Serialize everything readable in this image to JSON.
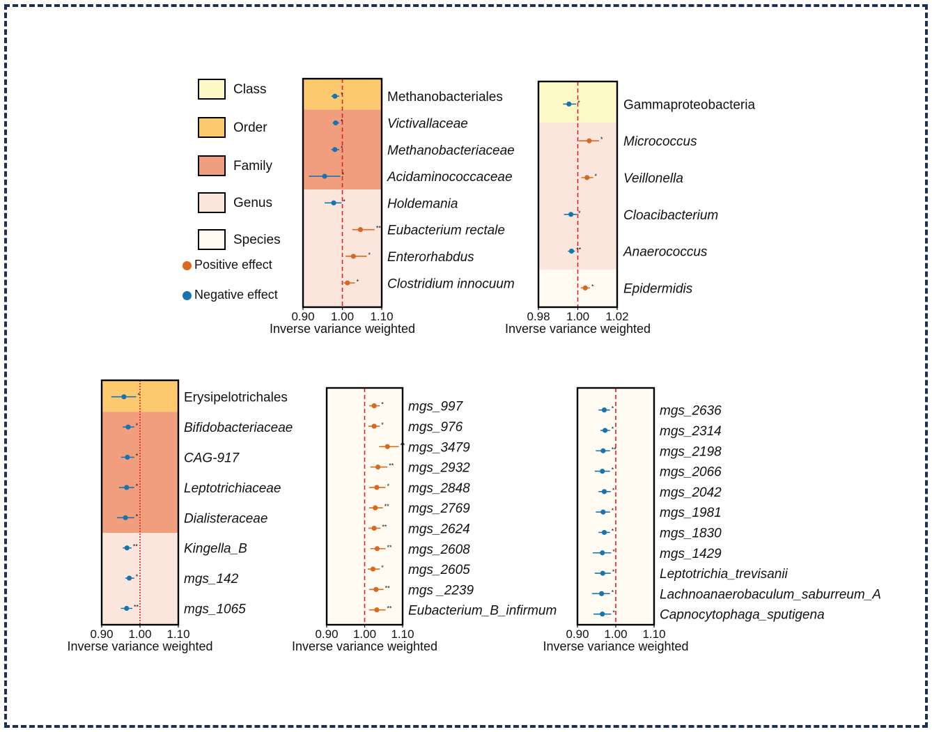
{
  "colors": {
    "frame": "#1c2f55",
    "class": "#fefac8",
    "order": "#fdc96e",
    "family": "#f09e7e",
    "genus": "#fbe6de",
    "species": "#fffbf2",
    "positive": "#d9691e",
    "negative": "#1874b0",
    "reference_line": "#e02020"
  },
  "legend": {
    "levels": [
      {
        "label": "Class",
        "key": "class"
      },
      {
        "label": "Order",
        "key": "order"
      },
      {
        "label": "Family",
        "key": "family"
      },
      {
        "label": "Genus",
        "key": "genus"
      },
      {
        "label": "Species",
        "key": "species"
      }
    ],
    "effects": [
      {
        "label": "Positive effect",
        "key": "positive"
      },
      {
        "label": "Negative effect",
        "key": "negative"
      }
    ]
  },
  "chart_data": [
    {
      "type": "forest",
      "xlabel": "Inverse variance weighted",
      "xlim": [
        0.9,
        1.1
      ],
      "ticks": [
        "0.90",
        "1.00",
        "1.10"
      ],
      "tick_values": [
        0.9,
        1.0,
        1.1
      ],
      "reference": 1.0,
      "rows": [
        {
          "label": "Methanobacteriales",
          "level": "order",
          "italic": false,
          "est": 0.981,
          "lo": 0.972,
          "hi": 0.992,
          "sig": "*"
        },
        {
          "label": "Victivallaceae",
          "level": "family",
          "italic": true,
          "est": 0.983,
          "lo": 0.975,
          "hi": 0.992,
          "sig": "*"
        },
        {
          "label": "Methanobacteriaceae",
          "level": "family",
          "italic": true,
          "est": 0.981,
          "lo": 0.972,
          "hi": 0.992,
          "sig": "*"
        },
        {
          "label": "Acidaminococcaceae",
          "level": "family",
          "italic": true,
          "est": 0.955,
          "lo": 0.915,
          "hi": 0.995,
          "sig": "*"
        },
        {
          "label": "Holdemania",
          "level": "genus",
          "italic": true,
          "est": 0.978,
          "lo": 0.955,
          "hi": 0.998,
          "sig": "*"
        },
        {
          "label": "Eubacterium rectale",
          "level": "genus",
          "italic": true,
          "est": 1.046,
          "lo": 1.025,
          "hi": 1.082,
          "sig": "**"
        },
        {
          "label": "Enterorhabdus",
          "level": "genus",
          "italic": true,
          "est": 1.028,
          "lo": 1.008,
          "hi": 1.062,
          "sig": "*"
        },
        {
          "label": "Clostridium innocuum",
          "level": "genus",
          "italic": true,
          "est": 1.013,
          "lo": 1.003,
          "hi": 1.032,
          "sig": "*"
        }
      ]
    },
    {
      "type": "forest",
      "xlabel": "Inverse variance weighted",
      "xlim": [
        0.98,
        1.02
      ],
      "ticks": [
        "0.98",
        "1.00",
        "1.02"
      ],
      "tick_values": [
        0.98,
        1.0,
        1.02
      ],
      "reference": 1.0,
      "rows": [
        {
          "label": "Gammaproteobacteria",
          "level": "class",
          "italic": false,
          "est": 0.9955,
          "lo": 0.9925,
          "hi": 0.9992,
          "sig": "*"
        },
        {
          "label": "Micrococcus",
          "level": "genus",
          "italic": true,
          "est": 1.0058,
          "lo": 1.0005,
          "hi": 1.0108,
          "sig": "*"
        },
        {
          "label": "Veillonella",
          "level": "genus",
          "italic": true,
          "est": 1.0047,
          "lo": 1.0018,
          "hi": 1.0078,
          "sig": "*"
        },
        {
          "label": "Cloacibacterium",
          "level": "genus",
          "italic": true,
          "est": 0.9965,
          "lo": 0.993,
          "hi": 0.9995,
          "sig": "*"
        },
        {
          "label": "Anaerococcus",
          "level": "genus",
          "italic": true,
          "est": 0.9968,
          "lo": 0.995,
          "hi": 0.9985,
          "sig": "**"
        },
        {
          "label": "Epidermidis",
          "level": "species",
          "italic": true,
          "est": 1.0038,
          "lo": 1.0015,
          "hi": 1.0062,
          "sig": "*"
        }
      ]
    },
    {
      "type": "forest",
      "xlabel": "Inverse variance weighted",
      "xlim": [
        0.9,
        1.1
      ],
      "ticks": [
        "0.90",
        "1.00",
        "1.10"
      ],
      "tick_values": [
        0.9,
        1.0,
        1.1
      ],
      "reference": 1.0,
      "rows": [
        {
          "label": "Erysipelotrichales",
          "level": "order",
          "italic": false,
          "est": 0.958,
          "lo": 0.925,
          "hi": 0.99,
          "sig": "*"
        },
        {
          "label": "Bifidobacteriaceae",
          "level": "family",
          "italic": true,
          "est": 0.969,
          "lo": 0.955,
          "hi": 0.985,
          "sig": "*"
        },
        {
          "label": "CAG-917",
          "level": "family",
          "italic": true,
          "est": 0.967,
          "lo": 0.95,
          "hi": 0.985,
          "sig": "*"
        },
        {
          "label": "Leptotrichiaceae",
          "level": "family",
          "italic": true,
          "est": 0.965,
          "lo": 0.945,
          "hi": 0.985,
          "sig": "*"
        },
        {
          "label": "Dialisteraceae",
          "level": "family",
          "italic": true,
          "est": 0.962,
          "lo": 0.94,
          "hi": 0.985,
          "sig": "*"
        },
        {
          "label": "Kingella_B",
          "level": "genus",
          "italic": true,
          "est": 0.966,
          "lo": 0.955,
          "hi": 0.978,
          "sig": "**"
        },
        {
          "label": "mgs_142",
          "level": "genus",
          "italic": true,
          "est": 0.972,
          "lo": 0.962,
          "hi": 0.985,
          "sig": "*"
        },
        {
          "label": "mgs_1065",
          "level": "genus",
          "italic": true,
          "est": 0.965,
          "lo": 0.95,
          "hi": 0.98,
          "sig": "**"
        }
      ]
    },
    {
      "type": "forest",
      "xlabel": "Inverse variance weighted",
      "xlim": [
        0.9,
        1.1
      ],
      "ticks": [
        "0.90",
        "1.00",
        "1.10"
      ],
      "tick_values": [
        0.9,
        1.0,
        1.1
      ],
      "reference": 1.0,
      "rows": [
        {
          "label": "mgs_997",
          "level": "species",
          "italic": true,
          "est": 1.025,
          "lo": 1.012,
          "hi": 1.04,
          "sig": "*"
        },
        {
          "label": "mgs_976",
          "level": "species",
          "italic": true,
          "est": 1.025,
          "lo": 1.01,
          "hi": 1.04,
          "sig": "*"
        },
        {
          "label": "mgs_3479",
          "level": "species",
          "italic": true,
          "est": 1.06,
          "lo": 1.038,
          "hi": 1.09,
          "sig": "**"
        },
        {
          "label": "mgs_2932",
          "level": "species",
          "italic": true,
          "est": 1.035,
          "lo": 1.015,
          "hi": 1.06,
          "sig": "**"
        },
        {
          "label": "mgs_2848",
          "level": "species",
          "italic": true,
          "est": 1.032,
          "lo": 1.012,
          "hi": 1.055,
          "sig": "*"
        },
        {
          "label": "mgs_2769",
          "level": "species",
          "italic": true,
          "est": 1.028,
          "lo": 1.012,
          "hi": 1.048,
          "sig": "**"
        },
        {
          "label": "mgs_2624",
          "level": "species",
          "italic": true,
          "est": 1.025,
          "lo": 1.01,
          "hi": 1.042,
          "sig": "**"
        },
        {
          "label": "mgs_2608",
          "level": "species",
          "italic": true,
          "est": 1.033,
          "lo": 1.015,
          "hi": 1.055,
          "sig": "**"
        },
        {
          "label": "mgs_2605",
          "level": "species",
          "italic": true,
          "est": 1.022,
          "lo": 1.008,
          "hi": 1.04,
          "sig": "*"
        },
        {
          "label": "mgs _2239",
          "level": "species",
          "italic": true,
          "est": 1.03,
          "lo": 1.012,
          "hi": 1.05,
          "sig": "**"
        },
        {
          "label": "Eubacterium_B_infirmum",
          "level": "species",
          "italic": true,
          "est": 1.032,
          "lo": 1.012,
          "hi": 1.055,
          "sig": "**"
        }
      ]
    },
    {
      "type": "forest",
      "xlabel": "Inverse variance weighted",
      "xlim": [
        0.9,
        1.1
      ],
      "ticks": [
        "0.90",
        "1.00",
        "1.10"
      ],
      "tick_values": [
        0.9,
        1.0,
        1.1
      ],
      "reference": 1.0,
      "rows": [
        {
          "label": "mgs_2636",
          "level": "species",
          "italic": true,
          "est": 0.97,
          "lo": 0.955,
          "hi": 0.985,
          "sig": "*"
        },
        {
          "label": "mgs_2314",
          "level": "species",
          "italic": true,
          "est": 0.972,
          "lo": 0.96,
          "hi": 0.985,
          "sig": "*"
        },
        {
          "label": "mgs_2198",
          "level": "species",
          "italic": true,
          "est": 0.967,
          "lo": 0.948,
          "hi": 0.985,
          "sig": "**"
        },
        {
          "label": "mgs_2066",
          "level": "species",
          "italic": true,
          "est": 0.965,
          "lo": 0.945,
          "hi": 0.985,
          "sig": "*"
        },
        {
          "label": "mgs_2042",
          "level": "species",
          "italic": true,
          "est": 0.97,
          "lo": 0.955,
          "hi": 0.987,
          "sig": "*"
        },
        {
          "label": "mgs_1981",
          "level": "species",
          "italic": true,
          "est": 0.967,
          "lo": 0.948,
          "hi": 0.985,
          "sig": "*"
        },
        {
          "label": "mgs_1830",
          "level": "species",
          "italic": true,
          "est": 0.97,
          "lo": 0.955,
          "hi": 0.985,
          "sig": "*"
        },
        {
          "label": "mgs_1429",
          "level": "species",
          "italic": true,
          "est": 0.965,
          "lo": 0.94,
          "hi": 0.988,
          "sig": "*"
        },
        {
          "label": "Leptotrichia_trevisanii",
          "level": "species",
          "italic": true,
          "est": 0.966,
          "lo": 0.945,
          "hi": 0.987,
          "sig": "*"
        },
        {
          "label": "Lachnoanaerobaculum_saburreum_A",
          "level": "species",
          "italic": true,
          "est": 0.963,
          "lo": 0.938,
          "hi": 0.985,
          "sig": "*"
        },
        {
          "label": "Capnocytophaga_sputigena",
          "level": "species",
          "italic": true,
          "est": 0.965,
          "lo": 0.942,
          "hi": 0.988,
          "sig": "*"
        }
      ]
    }
  ]
}
